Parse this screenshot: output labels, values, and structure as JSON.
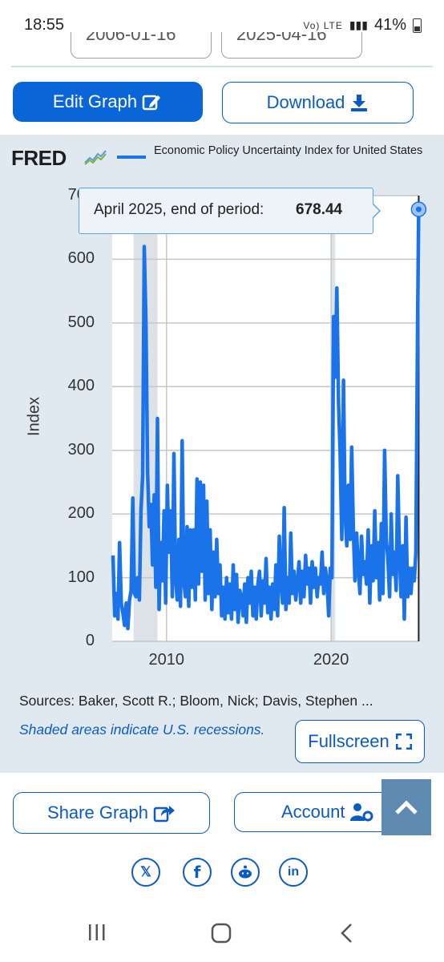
{
  "status_bar": {
    "time": "18:55",
    "network": "Vo) LTE",
    "battery": "41%"
  },
  "date_inputs": [
    "2006-01-16",
    "2025-04-16"
  ],
  "actions": {
    "edit_graph": "Edit Graph",
    "download": "Download"
  },
  "chart_header": {
    "logo": "FRED",
    "series_title": "Economic Policy Uncertainty Index for United States"
  },
  "tooltip": {
    "label": "April 2025, end of period:",
    "value": "678.44"
  },
  "footer": {
    "sources": "Sources: Baker, Scott R.; Bloom, Nick; Davis, Stephen ...",
    "recession_note": "Shaded areas indicate U.S. recessions.",
    "fullscreen": "Fullscreen"
  },
  "bottom_actions": {
    "share_graph": "Share Graph",
    "account": "Account"
  },
  "social": [
    "x-icon",
    "facebook-icon",
    "reddit-icon",
    "linkedin-icon"
  ],
  "colors": {
    "accent": "#0a65d6",
    "series": "#1a73e8",
    "panel": "#e1e9f0",
    "recession": "#dde2e6"
  },
  "chart_data": {
    "type": "line",
    "title": "Economic Policy Uncertainty Index for United States",
    "xlabel": "",
    "ylabel": "Index",
    "ylim": [
      0,
      700
    ],
    "xlim": [
      2006.7,
      2025.3
    ],
    "yticks": [
      "0",
      "100",
      "200",
      "300",
      "400",
      "500",
      "600",
      "700"
    ],
    "xticks": [
      {
        "label": "2010",
        "value": 2010
      },
      {
        "label": "2020",
        "value": 2020
      }
    ],
    "grid": true,
    "recessions": [
      [
        2008.0,
        2009.45
      ],
      [
        2020.0,
        2020.25
      ]
    ],
    "series": [
      {
        "name": "Economic Policy Uncertainty Index for United States",
        "points": [
          [
            2006.75,
            135
          ],
          [
            2006.85,
            40
          ],
          [
            2006.95,
            75
          ],
          [
            2007.05,
            35
          ],
          [
            2007.15,
            155
          ],
          [
            2007.25,
            60
          ],
          [
            2007.35,
            45
          ],
          [
            2007.45,
            25
          ],
          [
            2007.55,
            60
          ],
          [
            2007.65,
            20
          ],
          [
            2007.75,
            65
          ],
          [
            2007.85,
            80
          ],
          [
            2007.95,
            225
          ],
          [
            2008.05,
            75
          ],
          [
            2008.15,
            70
          ],
          [
            2008.25,
            100
          ],
          [
            2008.35,
            65
          ],
          [
            2008.45,
            205
          ],
          [
            2008.55,
            260
          ],
          [
            2008.65,
            620
          ],
          [
            2008.75,
            500
          ],
          [
            2008.85,
            265
          ],
          [
            2008.95,
            180
          ],
          [
            2009.05,
            215
          ],
          [
            2009.15,
            120
          ],
          [
            2009.25,
            230
          ],
          [
            2009.35,
            85
          ],
          [
            2009.45,
            350
          ],
          [
            2009.55,
            50
          ],
          [
            2009.65,
            155
          ],
          [
            2009.75,
            95
          ],
          [
            2009.85,
            205
          ],
          [
            2009.95,
            60
          ],
          [
            2010.05,
            245
          ],
          [
            2010.15,
            140
          ],
          [
            2010.25,
            205
          ],
          [
            2010.35,
            70
          ],
          [
            2010.45,
            295
          ],
          [
            2010.55,
            100
          ],
          [
            2010.65,
            65
          ],
          [
            2010.75,
            160
          ],
          [
            2010.85,
            55
          ],
          [
            2010.95,
            315
          ],
          [
            2011.05,
            95
          ],
          [
            2011.15,
            70
          ],
          [
            2011.25,
            180
          ],
          [
            2011.35,
            55
          ],
          [
            2011.45,
            175
          ],
          [
            2011.55,
            85
          ],
          [
            2011.65,
            175
          ],
          [
            2011.75,
            65
          ],
          [
            2011.85,
            255
          ],
          [
            2011.95,
            90
          ],
          [
            2012.05,
            250
          ],
          [
            2012.15,
            110
          ],
          [
            2012.25,
            245
          ],
          [
            2012.35,
            65
          ],
          [
            2012.45,
            220
          ],
          [
            2012.55,
            75
          ],
          [
            2012.65,
            175
          ],
          [
            2012.75,
            50
          ],
          [
            2012.85,
            140
          ],
          [
            2012.95,
            70
          ],
          [
            2013.05,
            160
          ],
          [
            2013.15,
            75
          ],
          [
            2013.25,
            120
          ],
          [
            2013.35,
            40
          ],
          [
            2013.45,
            85
          ],
          [
            2013.55,
            35
          ],
          [
            2013.65,
            100
          ],
          [
            2013.75,
            45
          ],
          [
            2013.85,
            90
          ],
          [
            2013.95,
            35
          ],
          [
            2014.05,
            120
          ],
          [
            2014.15,
            50
          ],
          [
            2014.25,
            105
          ],
          [
            2014.35,
            30
          ],
          [
            2014.45,
            80
          ],
          [
            2014.55,
            70
          ],
          [
            2014.65,
            40
          ],
          [
            2014.75,
            90
          ],
          [
            2014.85,
            30
          ],
          [
            2014.95,
            100
          ],
          [
            2015.05,
            60
          ],
          [
            2015.15,
            110
          ],
          [
            2015.25,
            40
          ],
          [
            2015.35,
            85
          ],
          [
            2015.45,
            35
          ],
          [
            2015.55,
            90
          ],
          [
            2015.65,
            110
          ],
          [
            2015.75,
            40
          ],
          [
            2015.85,
            95
          ],
          [
            2015.95,
            60
          ],
          [
            2016.05,
            130
          ],
          [
            2016.15,
            45
          ],
          [
            2016.25,
            85
          ],
          [
            2016.35,
            35
          ],
          [
            2016.45,
            90
          ],
          [
            2016.55,
            50
          ],
          [
            2016.65,
            120
          ],
          [
            2016.75,
            40
          ],
          [
            2016.85,
            165
          ],
          [
            2016.95,
            95
          ],
          [
            2017.05,
            60
          ],
          [
            2017.15,
            210
          ],
          [
            2017.25,
            50
          ],
          [
            2017.35,
            100
          ],
          [
            2017.45,
            60
          ],
          [
            2017.55,
            170
          ],
          [
            2017.65,
            75
          ],
          [
            2017.75,
            110
          ],
          [
            2017.85,
            65
          ],
          [
            2017.95,
            90
          ],
          [
            2018.05,
            125
          ],
          [
            2018.15,
            60
          ],
          [
            2018.25,
            110
          ],
          [
            2018.35,
            70
          ],
          [
            2018.45,
            135
          ],
          [
            2018.55,
            90
          ],
          [
            2018.65,
            115
          ],
          [
            2018.75,
            60
          ],
          [
            2018.85,
            125
          ],
          [
            2018.95,
            85
          ],
          [
            2019.05,
            115
          ],
          [
            2019.15,
            70
          ],
          [
            2019.25,
            100
          ],
          [
            2019.35,
            90
          ],
          [
            2019.45,
            140
          ],
          [
            2019.55,
            75
          ],
          [
            2019.65,
            115
          ],
          [
            2019.75,
            95
          ],
          [
            2019.85,
            40
          ],
          [
            2019.95,
            115
          ],
          [
            2020.05,
            100
          ],
          [
            2020.15,
            510
          ],
          [
            2020.25,
            415
          ],
          [
            2020.35,
            555
          ],
          [
            2020.45,
            375
          ],
          [
            2020.55,
            295
          ],
          [
            2020.65,
            160
          ],
          [
            2020.75,
            410
          ],
          [
            2020.85,
            200
          ],
          [
            2020.95,
            150
          ],
          [
            2021.05,
            245
          ],
          [
            2021.15,
            160
          ],
          [
            2021.25,
            305
          ],
          [
            2021.35,
            175
          ],
          [
            2021.45,
            95
          ],
          [
            2021.55,
            170
          ],
          [
            2021.65,
            115
          ],
          [
            2021.75,
            75
          ],
          [
            2021.85,
            165
          ],
          [
            2021.95,
            105
          ],
          [
            2022.05,
            125
          ],
          [
            2022.15,
            90
          ],
          [
            2022.25,
            175
          ],
          [
            2022.35,
            60
          ],
          [
            2022.45,
            150
          ],
          [
            2022.55,
            95
          ],
          [
            2022.65,
            205
          ],
          [
            2022.75,
            100
          ],
          [
            2022.85,
            155
          ],
          [
            2022.95,
            65
          ],
          [
            2023.05,
            185
          ],
          [
            2023.15,
            75
          ],
          [
            2023.25,
            300
          ],
          [
            2023.35,
            160
          ],
          [
            2023.45,
            130
          ],
          [
            2023.55,
            70
          ],
          [
            2023.65,
            200
          ],
          [
            2023.75,
            105
          ],
          [
            2023.85,
            140
          ],
          [
            2023.95,
            80
          ],
          [
            2024.05,
            260
          ],
          [
            2024.15,
            140
          ],
          [
            2024.25,
            70
          ],
          [
            2024.35,
            150
          ],
          [
            2024.45,
            35
          ],
          [
            2024.55,
            195
          ],
          [
            2024.65,
            70
          ],
          [
            2024.75,
            115
          ],
          [
            2024.85,
            75
          ],
          [
            2024.95,
            115
          ],
          [
            2025.05,
            95
          ],
          [
            2025.15,
            140
          ],
          [
            2025.25,
            490
          ],
          [
            2025.32,
            678.44
          ]
        ]
      }
    ]
  }
}
